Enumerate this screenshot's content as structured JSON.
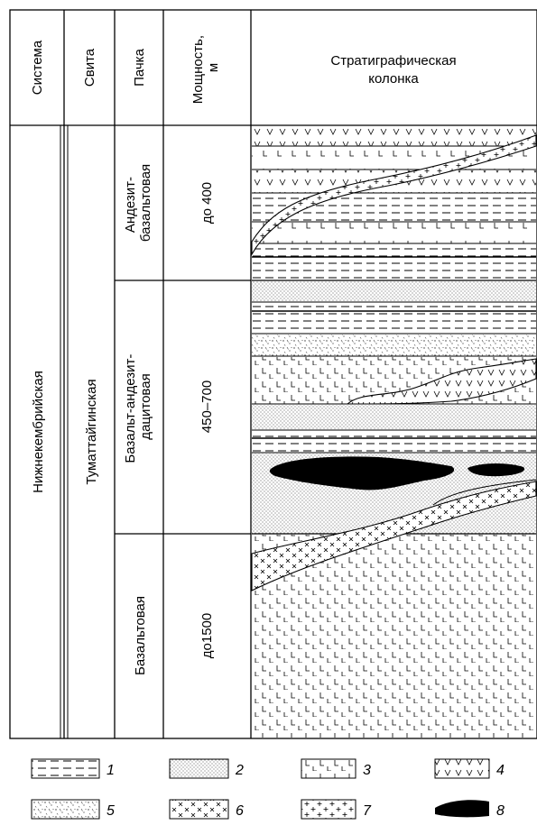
{
  "headers": {
    "system": "Система",
    "suite": "Свита",
    "member": "Пачка",
    "thickness": "Мощность, м",
    "column": "Стратиграфическая колонка"
  },
  "system_name": "Нижнекембрийская",
  "suite_name": "Туматтайгинская",
  "members": [
    {
      "name_line1": "Андезит-",
      "name_line2": "базальтовая",
      "thickness": "до 400"
    },
    {
      "name_line1": "Базальт-андезит-",
      "name_line2": "дацитовая",
      "thickness": "450–700"
    },
    {
      "name_line1": "Базальтовая",
      "name_line2": "",
      "thickness": "до1500"
    }
  ],
  "legend": [
    {
      "num": "1",
      "pattern": "dashed-lines-icon"
    },
    {
      "num": "2",
      "pattern": "dotted-sandstone-icon"
    },
    {
      "num": "3",
      "pattern": "basalt-ticks-icon"
    },
    {
      "num": "4",
      "pattern": "andesite-v-icon"
    },
    {
      "num": "5",
      "pattern": "tuff-dots-icon"
    },
    {
      "num": "6",
      "pattern": "cross-marks-icon"
    },
    {
      "num": "7",
      "pattern": "plus-marks-icon"
    },
    {
      "num": "8",
      "pattern": "black-lens-icon"
    }
  ]
}
